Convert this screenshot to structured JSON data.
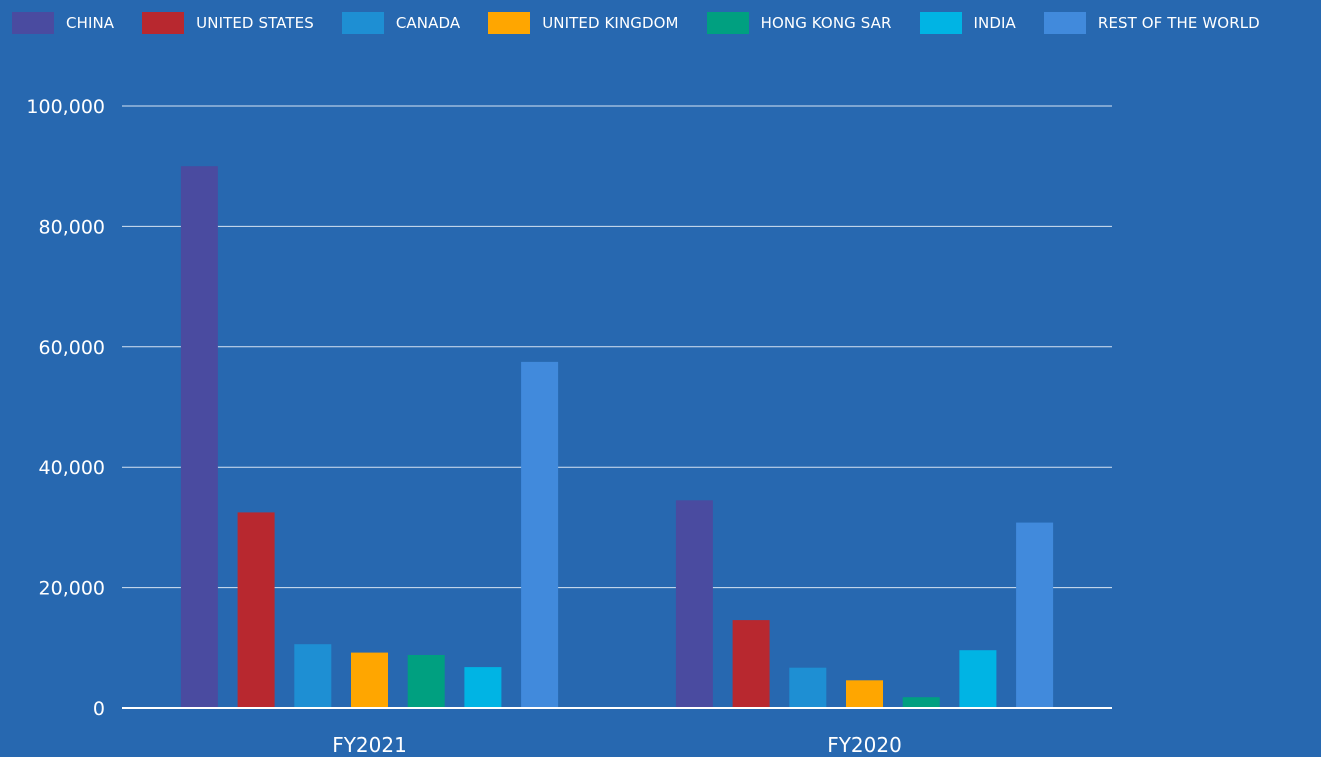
{
  "chart_data": {
    "type": "bar",
    "categories": [
      "FY2021",
      "FY2020"
    ],
    "series": [
      {
        "name": "CHINA",
        "color": "#4a4ba0",
        "values": [
          90000,
          34500
        ]
      },
      {
        "name": "UNITED STATES",
        "color": "#b8282f",
        "values": [
          32500,
          14600
        ]
      },
      {
        "name": "CANADA",
        "color": "#1e8fd3",
        "values": [
          10600,
          6700
        ]
      },
      {
        "name": "UNITED KINGDOM",
        "color": "#ffa600",
        "values": [
          9200,
          4600
        ]
      },
      {
        "name": "HONG KONG SAR",
        "color": "#00a080",
        "values": [
          8800,
          1800
        ]
      },
      {
        "name": "INDIA",
        "color": "#00b4e4",
        "values": [
          6800,
          9600
        ]
      },
      {
        "name": "REST OF THE WORLD",
        "color": "#418adc",
        "values": [
          57500,
          30800
        ]
      }
    ],
    "ylim": [
      0,
      100000
    ],
    "yticks": [
      0,
      20000,
      40000,
      60000,
      80000,
      100000
    ],
    "ytick_labels": [
      "0",
      "20,000",
      "40,000",
      "60,000",
      "80,000",
      "100,000"
    ],
    "grid": true,
    "legend_position": "top",
    "title": "",
    "xlabel": "",
    "ylabel": ""
  },
  "colors": {
    "background": "#2768b0",
    "text": "#ffffff",
    "grid": "#d6e3f3"
  }
}
